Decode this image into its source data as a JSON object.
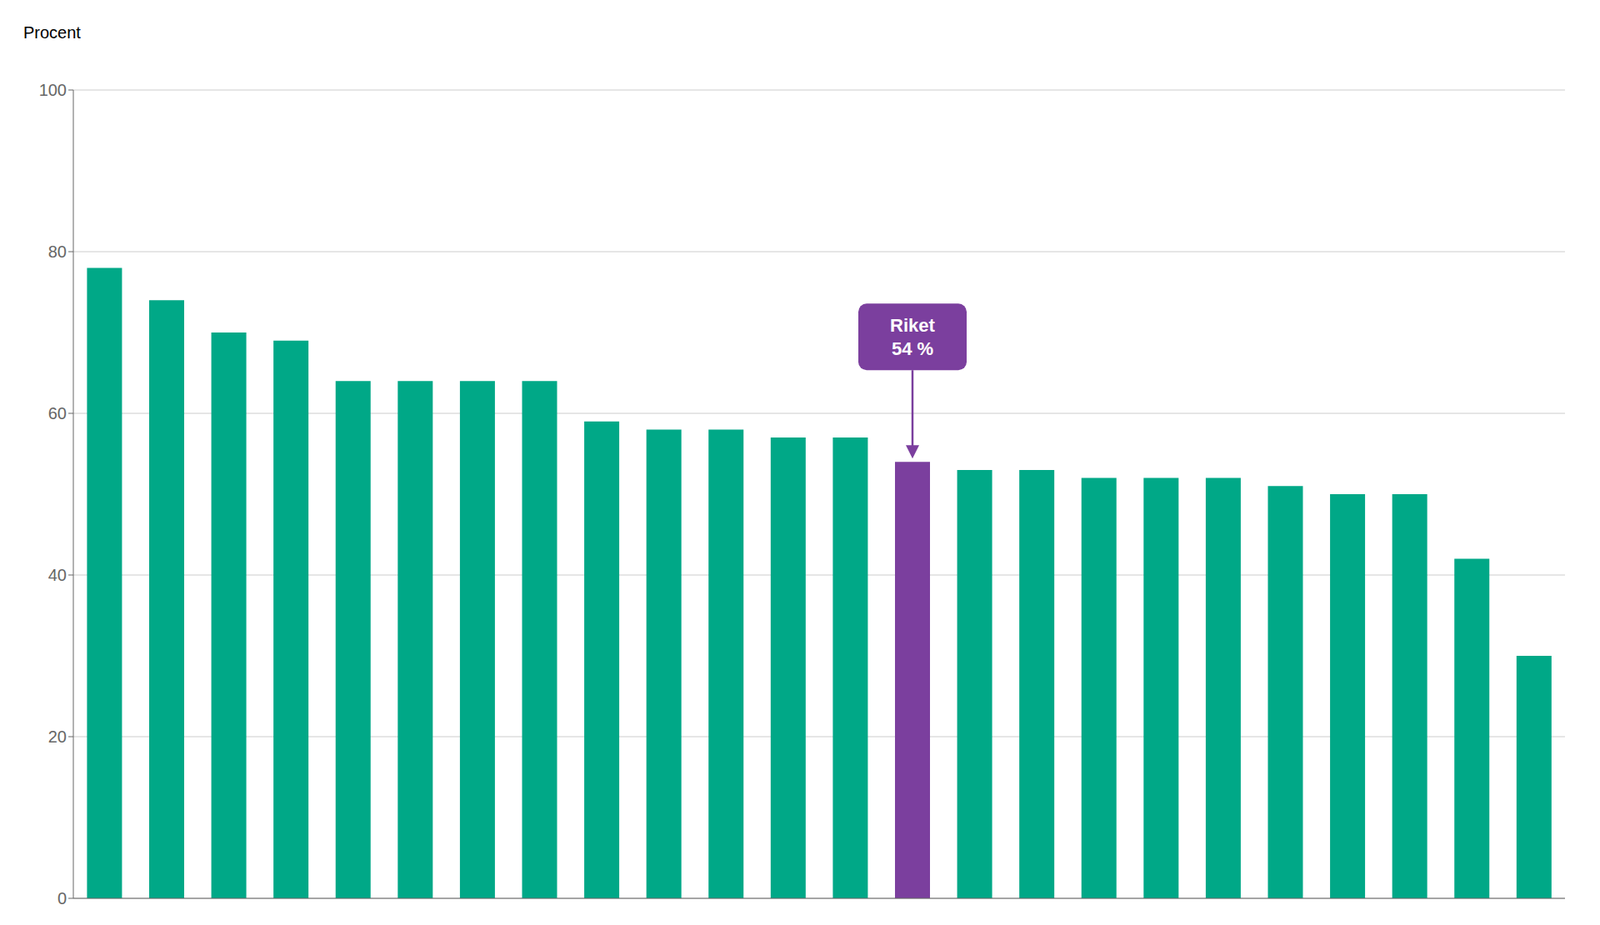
{
  "chart_data": {
    "type": "bar",
    "y_label": "Procent",
    "categories": [
      null,
      null,
      null,
      null,
      null,
      null,
      null,
      null,
      null,
      null,
      null,
      null,
      null,
      null,
      null,
      null,
      null,
      null,
      null,
      null,
      null,
      null,
      null,
      null
    ],
    "values": [
      78,
      74,
      70,
      69,
      64,
      64,
      64,
      64,
      59,
      58,
      58,
      57,
      57,
      54,
      53,
      53,
      52,
      52,
      52,
      51,
      50,
      50,
      42,
      30
    ],
    "colors": [
      "#00A887",
      "#00A887",
      "#00A887",
      "#00A887",
      "#00A887",
      "#00A887",
      "#00A887",
      "#00A887",
      "#00A887",
      "#00A887",
      "#00A887",
      "#00A887",
      "#00A887",
      "#7B3F9E",
      "#00A887",
      "#00A887",
      "#00A887",
      "#00A887",
      "#00A887",
      "#00A887",
      "#00A887",
      "#00A887",
      "#00A887",
      "#00A887"
    ],
    "ylim": [
      0,
      100
    ],
    "yticks": [
      0,
      20,
      40,
      60,
      80,
      100
    ],
    "grid": true,
    "tick_labels": "y",
    "annotations": [
      {
        "text": "Riket\n54 %",
        "index": 13,
        "color": "#7B3F9E"
      }
    ]
  }
}
